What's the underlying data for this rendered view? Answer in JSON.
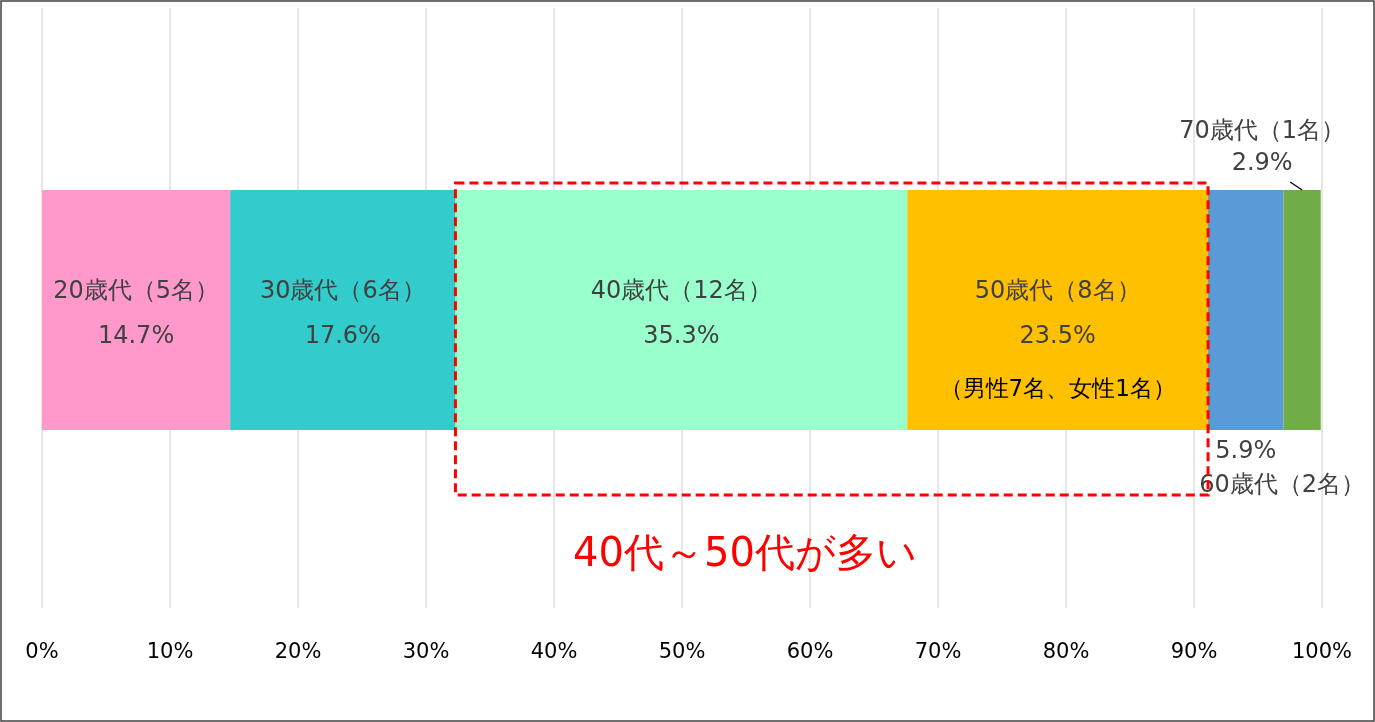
{
  "chart_data": {
    "type": "bar",
    "orientation": "horizontal",
    "stacked": true,
    "categories": [
      null
    ],
    "series": [
      {
        "name": "20歳代（5名）",
        "color": "#ff99cc",
        "values": [
          14.7
        ],
        "value_labels": [
          "14.7%"
        ]
      },
      {
        "name": "30歳代（6名）",
        "color": "#33cccc",
        "values": [
          17.6
        ],
        "value_labels": [
          "17.6%"
        ]
      },
      {
        "name": "40歳代（12名）",
        "color": "#99ffcc",
        "values": [
          35.3
        ],
        "value_labels": [
          "35.3%"
        ]
      },
      {
        "name": "50歳代（8名）",
        "color": "#ffc000",
        "values": [
          23.5
        ],
        "value_labels": [
          "23.5%"
        ]
      },
      {
        "name": "60歳代（2名）",
        "color": "#5b9bd5",
        "values": [
          5.9
        ],
        "value_labels": [
          "5.9%"
        ]
      },
      {
        "name": "70歳代（1名）",
        "color": "#70ad47",
        "values": [
          2.9
        ],
        "value_labels": [
          "2.9%"
        ]
      }
    ],
    "xlim": [
      0,
      100
    ],
    "xticks": [
      {
        "value": 0,
        "label": "0%"
      },
      {
        "value": 10,
        "label": "10%"
      },
      {
        "value": 20,
        "label": "20%"
      },
      {
        "value": 30,
        "label": "30%"
      },
      {
        "value": 40,
        "label": "40%"
      },
      {
        "value": 50,
        "label": "50%"
      },
      {
        "value": 60,
        "label": "60%"
      },
      {
        "value": 70,
        "label": "70%"
      },
      {
        "value": 80,
        "label": "80%"
      },
      {
        "value": 90,
        "label": "90%"
      },
      {
        "value": 100,
        "label": "100%"
      }
    ],
    "grid": "x",
    "annotations": [
      "（男性7名、女性1名）",
      "40代～50代が多い"
    ]
  }
}
